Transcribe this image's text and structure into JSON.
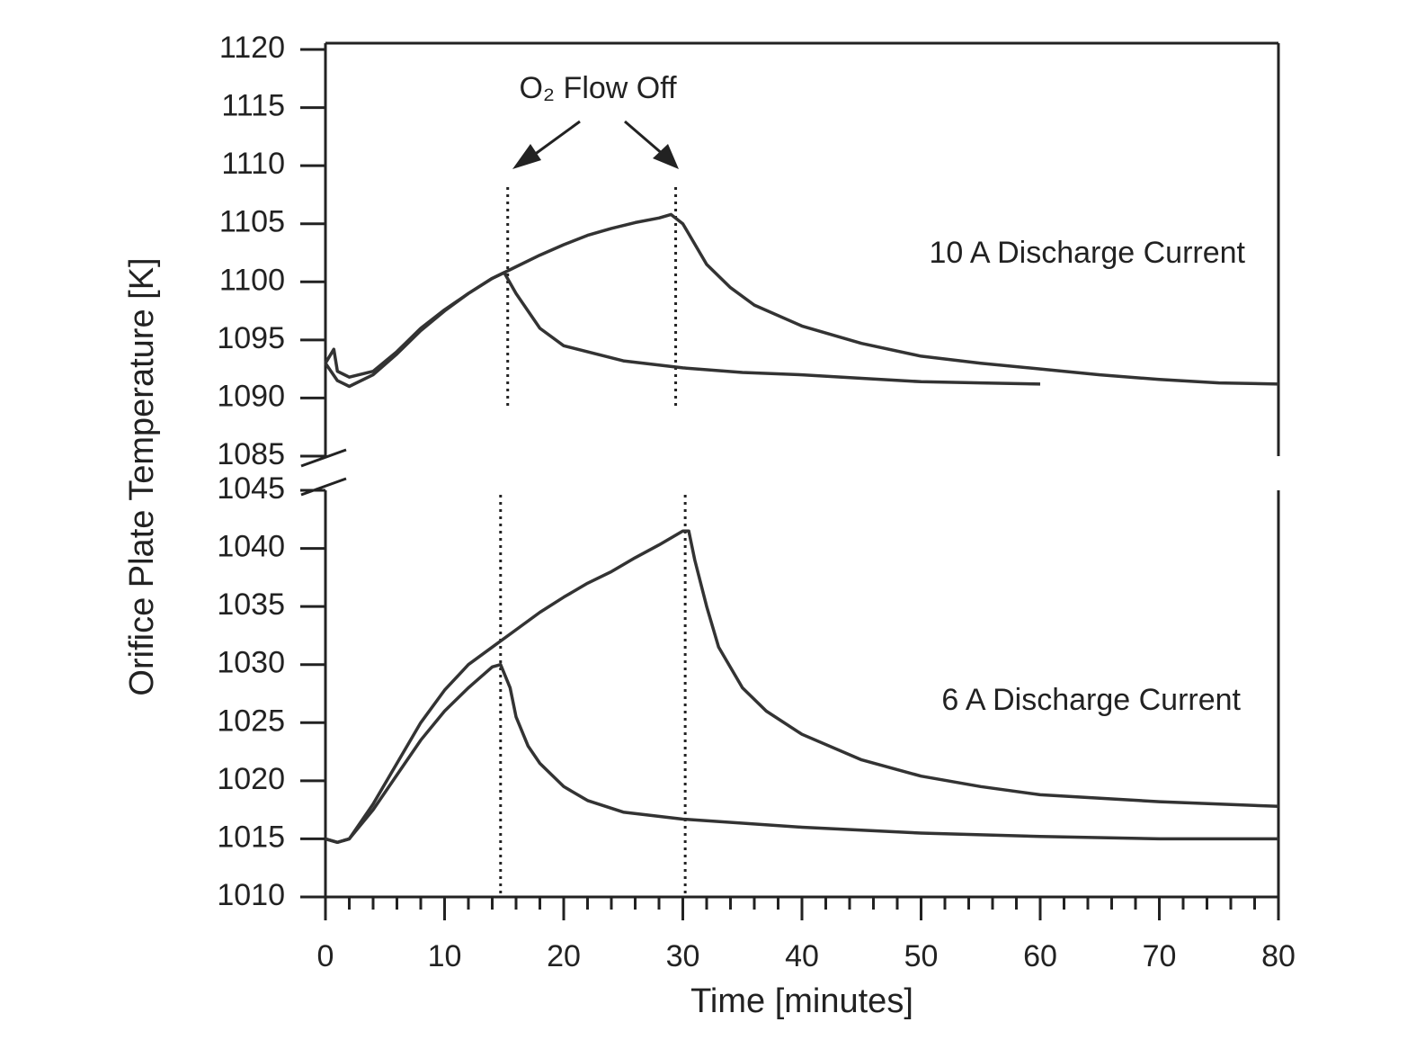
{
  "chart_data": [
    {
      "type": "line",
      "ylabel": "Orifice Plate Temperature [K]",
      "annotations": [
        "O₂ Flow Off",
        "10 A Discharge Current"
      ],
      "xlim": [
        0,
        80
      ],
      "ylim": [
        1085,
        1120
      ],
      "yticks": [
        1085,
        1090,
        1095,
        1100,
        1105,
        1110,
        1115,
        1120
      ],
      "vlines": [
        15.3,
        29.4
      ],
      "series": [
        {
          "color": "#333333",
          "x": [
            0,
            0.7,
            1,
            2,
            4,
            6,
            8,
            10,
            12,
            14,
            15,
            16,
            18,
            20,
            25,
            30,
            35,
            40,
            45,
            50,
            55,
            60
          ],
          "values": [
            1093,
            1094.2,
            1092.3,
            1091.8,
            1092.3,
            1094,
            1096,
            1097.6,
            1099,
            1100.3,
            1100.8,
            1099,
            1096,
            1094.5,
            1093.2,
            1092.6,
            1092.2,
            1092,
            1091.7,
            1091.4,
            1091.3,
            1091.2
          ]
        },
        {
          "color": "#333333",
          "x": [
            0,
            1,
            2,
            4,
            6,
            8,
            10,
            12,
            14,
            15,
            16,
            18,
            20,
            22,
            24,
            26,
            28,
            29,
            30,
            32,
            34,
            36,
            40,
            45,
            50,
            55,
            60,
            65,
            70,
            75,
            80
          ],
          "values": [
            1093,
            1091.5,
            1091,
            1092,
            1093.8,
            1095.8,
            1097.5,
            1099,
            1100.3,
            1100.8,
            1101.3,
            1102.3,
            1103.2,
            1104,
            1104.6,
            1105.1,
            1105.5,
            1105.8,
            1105,
            1101.5,
            1099.5,
            1098,
            1096.2,
            1094.7,
            1093.6,
            1093,
            1092.5,
            1092,
            1091.6,
            1091.3,
            1091.2
          ]
        }
      ]
    },
    {
      "type": "line",
      "xlabel": "Time [minutes]",
      "annotations": [
        "6 A Discharge Current"
      ],
      "xlim": [
        0,
        80
      ],
      "ylim": [
        1010,
        1045
      ],
      "xticks": [
        0,
        10,
        20,
        30,
        40,
        50,
        60,
        70,
        80
      ],
      "xminorticks": [
        2,
        4,
        6,
        8,
        12,
        14,
        16,
        18,
        22,
        24,
        26,
        28,
        32,
        34,
        36,
        38,
        42,
        44,
        46,
        48,
        52,
        54,
        56,
        58,
        62,
        64,
        66,
        68,
        72,
        74,
        76,
        78
      ],
      "yticks": [
        1010,
        1015,
        1020,
        1025,
        1030,
        1035,
        1040,
        1045
      ],
      "vlines": [
        14.7,
        30.2
      ],
      "series": [
        {
          "color": "#333333",
          "x": [
            0,
            1,
            2,
            4,
            6,
            8,
            10,
            12,
            14,
            14.7,
            15.5,
            16,
            17,
            18,
            20,
            22,
            25,
            30,
            40,
            50,
            60,
            70,
            80
          ],
          "values": [
            1015,
            1014.7,
            1015,
            1017.5,
            1020.5,
            1023.5,
            1026,
            1028,
            1029.8,
            1030,
            1028,
            1025.5,
            1023,
            1021.5,
            1019.5,
            1018.3,
            1017.3,
            1016.7,
            1016,
            1015.5,
            1015.2,
            1015,
            1015
          ]
        },
        {
          "color": "#333333",
          "x": [
            0,
            1,
            2,
            4,
            6,
            8,
            10,
            12,
            14,
            16,
            18,
            20,
            22,
            24,
            26,
            28,
            30,
            30.5,
            31,
            32,
            33,
            35,
            37,
            40,
            45,
            50,
            55,
            60,
            70,
            80
          ],
          "values": [
            1015,
            1014.7,
            1015,
            1018,
            1021.5,
            1025,
            1027.8,
            1030,
            1031.5,
            1033,
            1034.5,
            1035.8,
            1037,
            1038,
            1039.2,
            1040.3,
            1041.5,
            1041.5,
            1039,
            1035,
            1031.5,
            1028,
            1026,
            1024,
            1021.8,
            1020.4,
            1019.5,
            1018.8,
            1018.2,
            1017.8
          ]
        }
      ]
    }
  ]
}
